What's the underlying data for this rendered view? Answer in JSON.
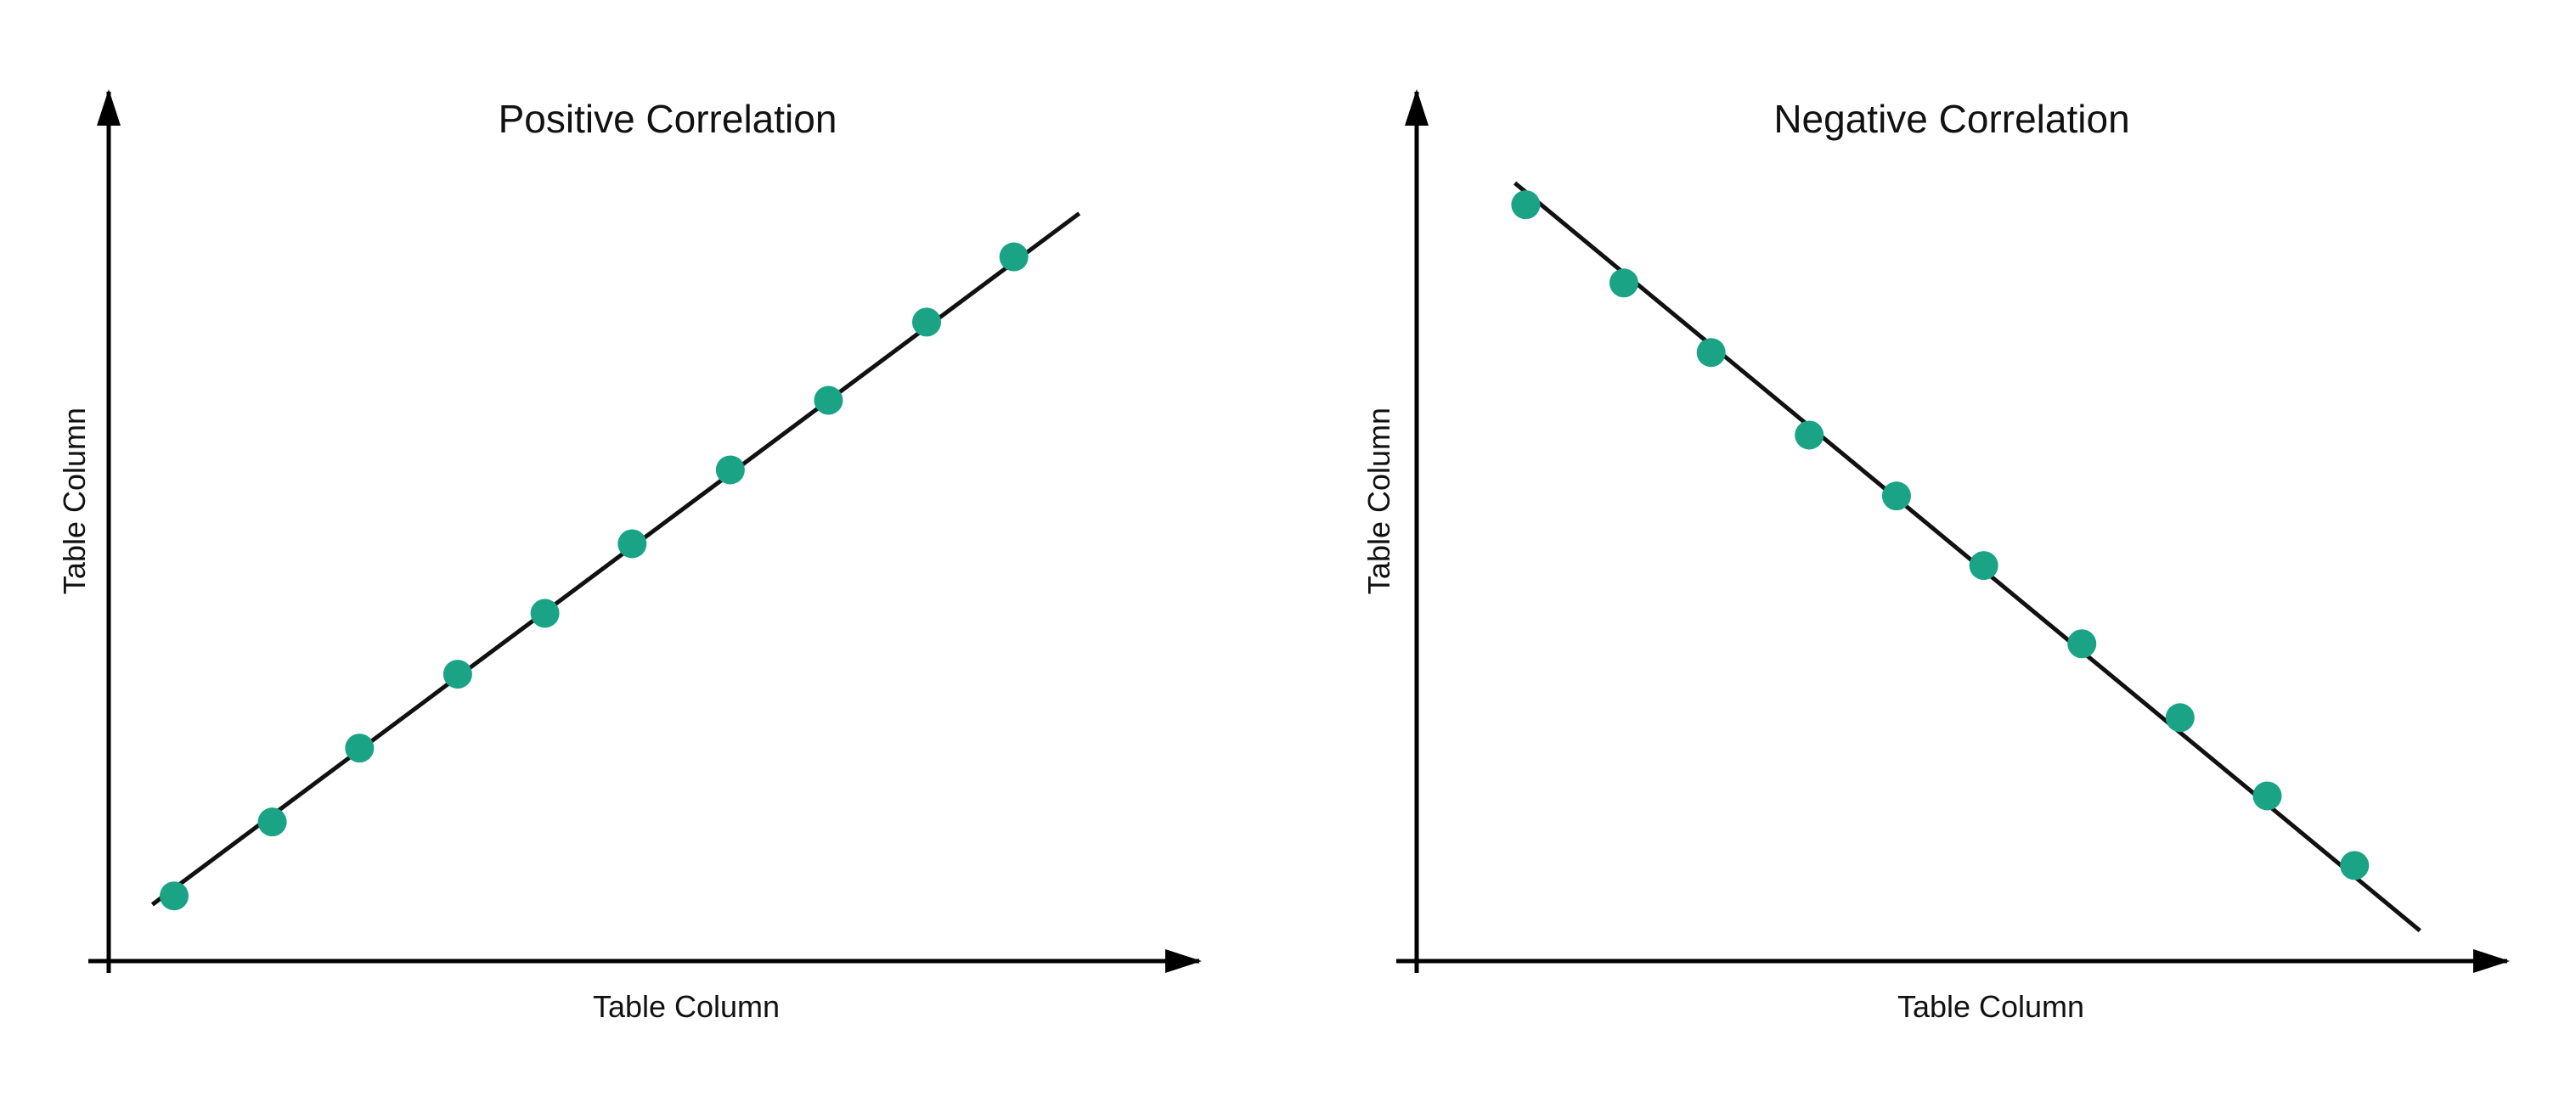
{
  "chart_data": [
    {
      "type": "scatter",
      "title": "Positive Correlation",
      "xlabel": "Table Column",
      "ylabel": "Table Column",
      "xlim": [
        0,
        10
      ],
      "ylim": [
        0,
        10
      ],
      "grid": false,
      "x": [
        0.6,
        1.5,
        2.3,
        3.2,
        4.0,
        4.8,
        5.7,
        6.6,
        7.5,
        8.3
      ],
      "y": [
        0.75,
        1.6,
        2.45,
        3.3,
        4.0,
        4.8,
        5.65,
        6.45,
        7.35,
        8.1
      ],
      "trendline": {
        "x": [
          0.4,
          8.9
        ],
        "y": [
          0.65,
          8.6
        ]
      },
      "colors": {
        "point": "#1aa384",
        "line": "#111111",
        "axis": "#000000"
      }
    },
    {
      "type": "scatter",
      "title": "Negative Correlation",
      "xlabel": "Table Column",
      "ylabel": "Table Column",
      "xlim": [
        0,
        10
      ],
      "ylim": [
        0,
        10
      ],
      "grid": false,
      "x": [
        1.0,
        1.9,
        2.7,
        3.6,
        4.4,
        5.2,
        6.1,
        7.0,
        7.8,
        8.6
      ],
      "y": [
        8.7,
        7.8,
        7.0,
        6.05,
        5.35,
        4.55,
        3.65,
        2.8,
        1.9,
        1.1
      ],
      "trendline": {
        "x": [
          0.9,
          9.2
        ],
        "y": [
          8.95,
          0.35
        ]
      },
      "colors": {
        "point": "#1aa384",
        "line": "#111111",
        "axis": "#000000"
      }
    }
  ]
}
